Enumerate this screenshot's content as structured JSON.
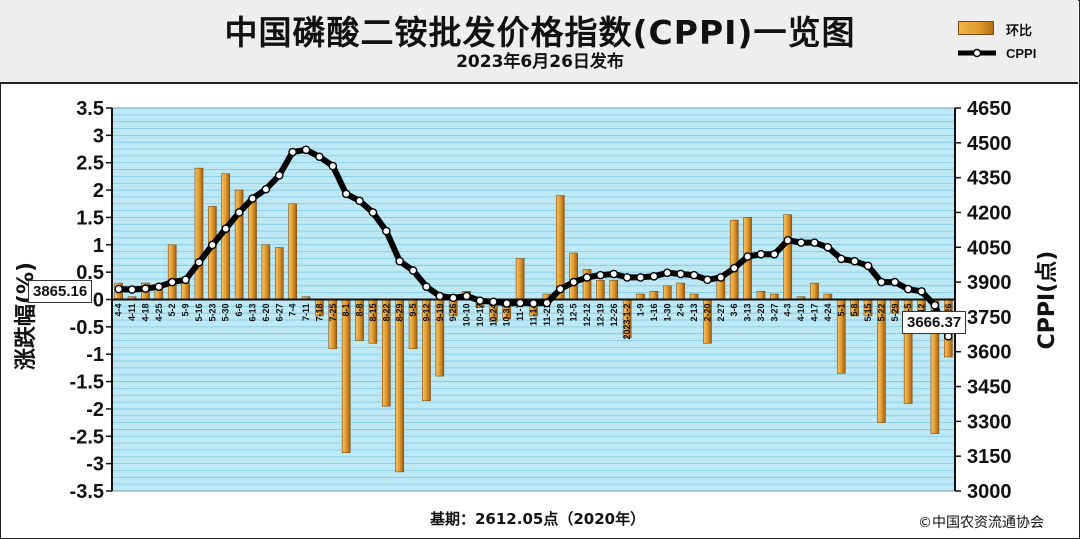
{
  "header": {
    "title": "中国磷酸二铵批发价格指数(CPPI)一览图",
    "subtitle": "2023年6月26日发布"
  },
  "legend": {
    "bar_label": "环比",
    "line_label": "CPPI"
  },
  "axes": {
    "left_title": "涨跌幅(%)",
    "right_title": "CPPI(点)"
  },
  "callouts": {
    "first_value": "3865.16",
    "last_value": "3666.37"
  },
  "footer": {
    "base": "基期：2612.05点（2020年）",
    "copyright": "©中国农资流通协会"
  },
  "colors": {
    "bar": "#e29a2d",
    "line": "#000000",
    "marker_fill": "#ffffff",
    "plot_bg": "#bfe8f5",
    "grid": "#7cc9e6"
  },
  "chart_data": {
    "type": "bar",
    "left_axis": {
      "ylim": [
        -3.5,
        3.5
      ],
      "ticks": [
        "3.5",
        "3",
        "2.5",
        "2",
        "1.5",
        "1",
        "0.5",
        "0",
        "-0.5",
        "-1",
        "-1.5",
        "-2",
        "-2.5",
        "-3",
        "-3.5"
      ]
    },
    "right_axis": {
      "ylim": [
        3000,
        4650
      ],
      "ticks": [
        "4650",
        "4500",
        "4350",
        "4200",
        "4050",
        "3900",
        "3750",
        "3600",
        "3450",
        "3300",
        "3150",
        "3000"
      ]
    },
    "x_labels": [
      "4-4",
      "4-11",
      "4-18",
      "4-25",
      "5-2",
      "5-9",
      "5-16",
      "5-23",
      "5-30",
      "6-6",
      "6-13",
      "6-20",
      "6-27",
      "7-4",
      "7-11",
      "7-18",
      "7-25",
      "8-1",
      "8-8",
      "8-15",
      "8-22",
      "8-29",
      "9-5",
      "9-12",
      "9-19",
      "9-26",
      "10-10",
      "10-17",
      "10-24",
      "10-31",
      "11-7",
      "11-14",
      "11-21",
      "11-28",
      "12-5",
      "12-12",
      "12-19",
      "12-26",
      "2023-1-2",
      "1-9",
      "1-16",
      "1-30",
      "2-6",
      "2-13",
      "2-20",
      "2-27",
      "3-6",
      "3-13",
      "3-20",
      "3-27",
      "4-3",
      "4-10",
      "4-17",
      "4-24",
      "5-1",
      "5-8",
      "5-15",
      "5-22",
      "5-29",
      "6-5",
      "6-12",
      "6-19",
      "6-26"
    ],
    "series": [
      {
        "name": "环比",
        "type": "bar",
        "axis": "left",
        "values": [
          0.3,
          0.05,
          0.3,
          0.2,
          1.0,
          0.3,
          2.4,
          1.7,
          2.3,
          2.0,
          1.8,
          1.0,
          0.95,
          1.75,
          0.05,
          -0.3,
          -0.9,
          -2.8,
          -0.75,
          -0.8,
          -1.95,
          -3.15,
          -0.9,
          -1.85,
          -1.4,
          -0.3,
          0.15,
          -0.15,
          -0.4,
          -0.35,
          0.75,
          -0.3,
          0.1,
          1.9,
          0.85,
          0.55,
          0.35,
          0.35,
          -0.7,
          0.1,
          0.15,
          0.25,
          0.3,
          0.1,
          -0.8,
          0.45,
          1.45,
          1.5,
          0.15,
          0.1,
          1.55,
          0.05,
          0.3,
          0.1,
          -1.35,
          -0.3,
          -0.3,
          -2.25,
          -0.25,
          -1.9,
          -0.2,
          -2.45,
          -1.05
        ]
      },
      {
        "name": "CPPI",
        "type": "line",
        "axis": "right",
        "values": [
          3870,
          3868,
          3872,
          3880,
          3900,
          3910,
          3985,
          4060,
          4130,
          4200,
          4260,
          4300,
          4360,
          4460,
          4470,
          4440,
          4400,
          4280,
          4250,
          4200,
          4120,
          3990,
          3950,
          3880,
          3840,
          3832,
          3840,
          3820,
          3815,
          3808,
          3810,
          3808,
          3810,
          3870,
          3900,
          3920,
          3930,
          3935,
          3920,
          3920,
          3925,
          3940,
          3935,
          3930,
          3910,
          3920,
          3960,
          4010,
          4020,
          4020,
          4080,
          4070,
          4070,
          4050,
          4000,
          3990,
          3970,
          3900,
          3900,
          3870,
          3860,
          3800,
          3666.37
        ]
      }
    ]
  }
}
